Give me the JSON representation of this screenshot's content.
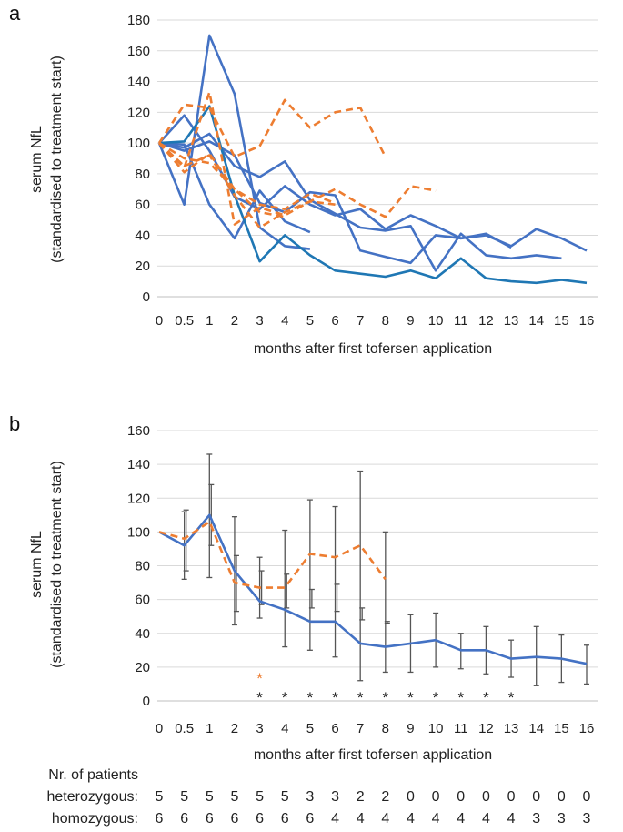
{
  "chart_data": [
    {
      "panel_label": "a",
      "type": "line",
      "x_labels": [
        "0",
        "0.5",
        "1",
        "2",
        "3",
        "4",
        "5",
        "6",
        "7",
        "8",
        "9",
        "10",
        "11",
        "12",
        "13",
        "14",
        "15",
        "16"
      ],
      "xlabel": "months after first tofersen application",
      "ylabel_line1": "serum NfL",
      "ylabel_line2": "(standardised to treatment start)",
      "ylim": [
        0,
        180
      ],
      "yticks": [
        "0",
        "20",
        "40",
        "60",
        "80",
        "100",
        "120",
        "140",
        "160",
        "180"
      ],
      "grid": true,
      "series": [
        {
          "name": "solid-1",
          "style": "solid",
          "values": [
            100,
            118,
            95,
            65,
            57,
            72,
            60,
            53,
            57,
            44,
            53,
            46,
            38,
            41,
            32
          ]
        },
        {
          "name": "solid-2",
          "style": "solid",
          "values": [
            100,
            60,
            170,
            132,
            45,
            33,
            31
          ]
        },
        {
          "name": "solid-3",
          "style": "solid",
          "values": [
            100,
            97,
            106,
            85,
            78,
            88,
            63,
            54,
            45,
            43,
            46,
            17,
            41,
            27,
            25,
            27,
            25
          ]
        },
        {
          "name": "solid-4",
          "style": "solid",
          "values": [
            100,
            99,
            60,
            38,
            69,
            49,
            42
          ]
        },
        {
          "name": "solid-5",
          "style": "solid",
          "values": [
            100,
            95,
            101,
            92,
            61,
            55,
            68,
            66,
            30,
            26,
            22,
            40,
            38,
            40,
            33,
            44,
            38,
            30
          ]
        },
        {
          "name": "solid-6",
          "style": "solid-dark",
          "values": [
            100,
            101,
            124,
            66,
            23,
            40,
            27,
            17,
            15,
            13,
            17,
            12,
            25,
            12,
            10,
            9,
            11,
            9
          ]
        },
        {
          "name": "dashed-1",
          "style": "dashed",
          "values": [
            100,
            125,
            123,
            91,
            98,
            128,
            110,
            120,
            123,
            91
          ]
        },
        {
          "name": "dashed-2",
          "style": "dashed",
          "values": [
            100,
            84,
            133,
            47,
            58,
            53,
            62,
            70,
            60,
            52,
            72,
            69
          ]
        },
        {
          "name": "dashed-3",
          "style": "dashed",
          "values": [
            100,
            90,
            87,
            70,
            55,
            52
          ]
        },
        {
          "name": "dashed-4",
          "style": "dashed",
          "values": [
            100,
            85,
            92,
            66,
            45,
            55,
            62,
            60
          ]
        },
        {
          "name": "dashed-5",
          "style": "dashed",
          "values": [
            100,
            81,
            93,
            70,
            60,
            57,
            67,
            61
          ]
        }
      ]
    },
    {
      "panel_label": "b",
      "type": "line",
      "x_labels": [
        "0",
        "0.5",
        "1",
        "2",
        "3",
        "4",
        "5",
        "6",
        "7",
        "8",
        "9",
        "10",
        "11",
        "12",
        "13",
        "14",
        "15",
        "16"
      ],
      "xlabel": "months after first tofersen application",
      "ylabel_line1": "serum NfL",
      "ylabel_line2": "(standardised to treatment start)",
      "ylim": [
        0,
        160
      ],
      "yticks": [
        "0",
        "20",
        "40",
        "60",
        "80",
        "100",
        "120",
        "140",
        "160"
      ],
      "grid": true,
      "series": [
        {
          "name": "homozygous-mean",
          "style": "solid",
          "values": [
            100,
            92,
            110,
            77,
            59,
            54,
            47,
            47,
            34,
            32,
            34,
            36,
            30,
            30,
            25,
            26,
            25,
            22
          ],
          "err_low": [
            100,
            72,
            73,
            45,
            49,
            32,
            30,
            26,
            12,
            17,
            17,
            20,
            19,
            16,
            14,
            9,
            11,
            10
          ],
          "err_high": [
            100,
            112,
            146,
            109,
            85,
            101,
            119,
            115,
            136,
            100,
            51,
            52,
            40,
            44,
            36,
            44,
            39,
            33
          ]
        },
        {
          "name": "heterozygous-mean",
          "style": "dashed",
          "values": [
            100,
            96,
            106,
            70,
            67,
            67,
            87,
            85,
            92,
            72
          ],
          "err_low": [
            100,
            77,
            92,
            53,
            57,
            55,
            55,
            53,
            55,
            46
          ],
          "err_high": [
            100,
            113,
            128,
            86,
            77,
            75,
            66,
            69,
            48,
            47
          ]
        }
      ],
      "sig_orange": [
        "",
        "",
        "",
        "",
        "*",
        "",
        "",
        "",
        "",
        "",
        "",
        "",
        "",
        "",
        "",
        "",
        "",
        ""
      ],
      "sig_black": [
        "",
        "",
        "",
        "",
        "*",
        "*",
        "*",
        "*",
        "*",
        "*",
        "*",
        "*",
        "*",
        "*",
        "*",
        "",
        "",
        ""
      ],
      "sig_orange_color": "#ed7d31",
      "sig_black_color": "#111111"
    }
  ],
  "patients_table": {
    "title": "Nr. of patients",
    "rows": [
      {
        "label": "heterozygous:",
        "values": [
          "5",
          "5",
          "5",
          "5",
          "5",
          "5",
          "3",
          "3",
          "2",
          "2",
          "0",
          "0",
          "0",
          "0",
          "0",
          "0",
          "0",
          "0"
        ]
      },
      {
        "label": "homozygous:",
        "values": [
          "6",
          "6",
          "6",
          "6",
          "6",
          "6",
          "6",
          "4",
          "4",
          "4",
          "4",
          "4",
          "4",
          "4",
          "4",
          "3",
          "3",
          "3"
        ]
      }
    ]
  },
  "colors": {
    "solid": "#4472c4",
    "solid_dark": "#1f77b4",
    "dashed": "#ed7d31",
    "errorbar": "#555555"
  }
}
